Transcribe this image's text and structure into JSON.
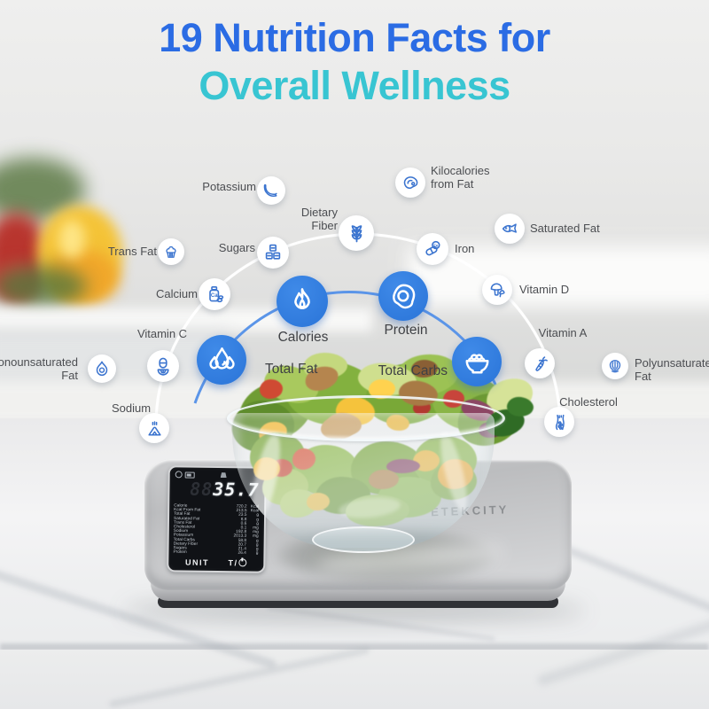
{
  "title": {
    "line1": "19 Nutrition Facts for",
    "line2": "Overall Wellness"
  },
  "colors": {
    "title_blue": "#2b6ce4",
    "title_teal": "#38c5d2",
    "icon_blue": "#3b74cf",
    "circle_blue": "#2e7ce2",
    "label_gray": "#4c4e52",
    "arc_white": "#ffffff",
    "arc_blue": "#5b95e8"
  },
  "nutrients": {
    "ring": [
      {
        "id": "potassium",
        "icon": "banana-icon",
        "lines": [
          "Potassium"
        ]
      },
      {
        "id": "kilocalories-from-fat",
        "icon": "meat-icon",
        "lines": [
          "Kilocalories",
          "from Fat"
        ]
      },
      {
        "id": "dietary-fiber",
        "icon": "wheat-icon",
        "lines": [
          "Dietary",
          "Fiber"
        ]
      },
      {
        "id": "sugars",
        "icon": "sugar-cubes-icon",
        "lines": [
          "Sugars"
        ]
      },
      {
        "id": "trans-fat",
        "icon": "cupcake-icon",
        "lines": [
          "Trans Fat"
        ]
      },
      {
        "id": "iron",
        "icon": "iron-pill-icon",
        "lines": [
          "Iron"
        ]
      },
      {
        "id": "saturated-fat",
        "icon": "fish-icon",
        "lines": [
          "Saturated Fat"
        ]
      },
      {
        "id": "calcium",
        "icon": "calcium-jar-icon",
        "lines": [
          "Calcium"
        ]
      },
      {
        "id": "vitamin-d",
        "icon": "mushroom-icon",
        "lines": [
          "Vitamin D"
        ]
      },
      {
        "id": "vitamin-c",
        "icon": "capsule-orange-icon",
        "lines": [
          "Vitamin C"
        ]
      },
      {
        "id": "vitamin-a",
        "icon": "carrot-icon",
        "lines": [
          "Vitamin A"
        ]
      },
      {
        "id": "monounsaturated-fat",
        "icon": "avocado-icon",
        "lines": [
          "Monounsaturated",
          "Fat"
        ]
      },
      {
        "id": "polyunsaturated-fat",
        "icon": "walnut-icon",
        "lines": [
          "Polyunsaturated",
          "Fat"
        ]
      },
      {
        "id": "sodium",
        "icon": "salt-icon",
        "lines": [
          "Sodium"
        ]
      },
      {
        "id": "cholesterol",
        "icon": "artery-icon",
        "lines": [
          "Cholesterol"
        ]
      }
    ],
    "main": [
      {
        "id": "calories",
        "icon": "flame-icon",
        "lines": [
          "Calories"
        ]
      },
      {
        "id": "protein",
        "icon": "egg-icon",
        "lines": [
          "Protein"
        ]
      },
      {
        "id": "total-fat",
        "icon": "water-drops-icon",
        "lines": [
          "Total Fat"
        ]
      },
      {
        "id": "total-carbs",
        "icon": "rice-bowl-icon",
        "lines": [
          "Total Carbs"
        ]
      }
    ]
  },
  "scale": {
    "brand": "ETEKCITY",
    "buttons": {
      "unit": "UNIT",
      "tare_prefix": "T/"
    },
    "display": {
      "ghost": "88",
      "reading": "35.7",
      "unit": "oz",
      "rows": [
        {
          "name": "Calorie",
          "value": "720.2",
          "unit": "Kcal"
        },
        {
          "name": "Kcal From Fat",
          "value": "213.5",
          "unit": "Kcal"
        },
        {
          "name": "Total Fat",
          "value": "23.5",
          "unit": "g"
        },
        {
          "name": "Saturated Fat",
          "value": "8.8",
          "unit": "g"
        },
        {
          "name": "Trans Fat",
          "value": "0.6",
          "unit": "g"
        },
        {
          "name": "Cholesterol",
          "value": "0.1",
          "unit": "mg"
        },
        {
          "name": "Sodium",
          "value": "192.8",
          "unit": "mg"
        },
        {
          "name": "Potassium",
          "value": "2013.3",
          "unit": "mg"
        },
        {
          "name": "Total Carbs",
          "value": "58.8",
          "unit": "g"
        },
        {
          "name": "Dietary Fiber",
          "value": "20.7",
          "unit": "g"
        },
        {
          "name": "Sugars",
          "value": "21.4",
          "unit": "g"
        },
        {
          "name": "Protein",
          "value": "26.4",
          "unit": "g"
        }
      ]
    }
  }
}
